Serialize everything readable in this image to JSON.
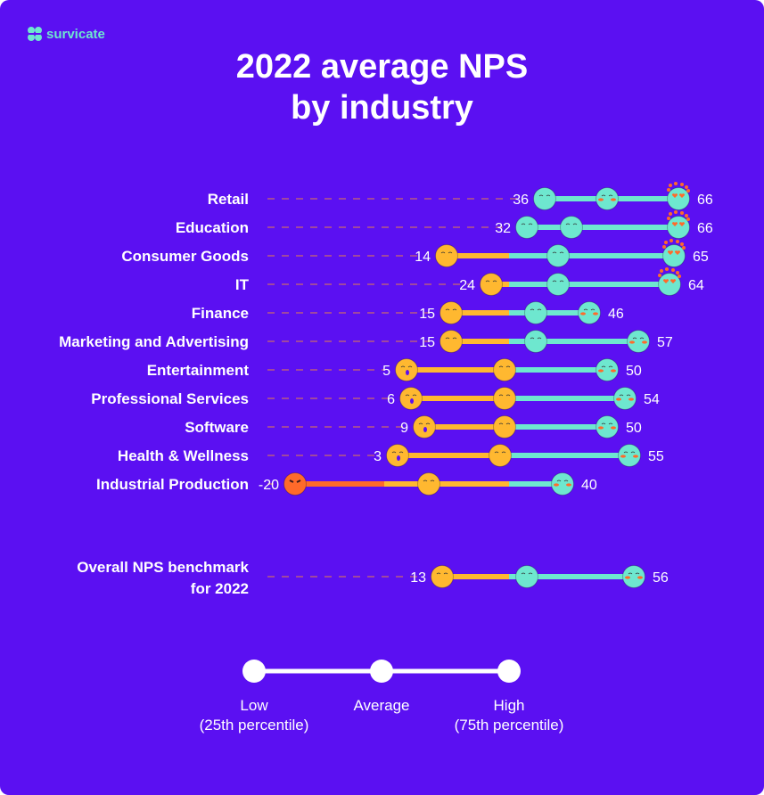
{
  "brand": {
    "logo_text": "survicate",
    "logo_color": "#6ee7cf"
  },
  "chart_data": {
    "type": "dumbbell",
    "title": "2022 average NPS by industry",
    "title_lines": [
      "2022 average NPS",
      "by industry"
    ],
    "colors": {
      "background": "#5b10f2",
      "negative": "#ff6a2a",
      "below_average": "#ffb830",
      "above_average": "#6ee7cf",
      "dash": "#a0489e"
    },
    "categories": [
      "Retail",
      "Education",
      "Consumer Goods",
      "IT",
      "Finance",
      "Marketing and Advertising",
      "Entertainment",
      "Professional Services",
      "Software",
      "Health & Wellness",
      "Industrial Production"
    ],
    "series": [
      {
        "name": "Low (25th percentile)",
        "values": [
          36,
          32,
          14,
          24,
          15,
          15,
          5,
          6,
          9,
          3,
          -20
        ]
      },
      {
        "name": "Average",
        "values": [
          50,
          42,
          39,
          39,
          34,
          34,
          27,
          27,
          27,
          26,
          10
        ]
      },
      {
        "name": "High (75th percentile)",
        "values": [
          66,
          66,
          65,
          64,
          46,
          57,
          50,
          54,
          50,
          55,
          40
        ]
      }
    ],
    "benchmark": {
      "label_lines": [
        "Overall NPS benchmark",
        "for 2022"
      ],
      "low": 13,
      "average": 32,
      "high": 56
    },
    "legend": {
      "items": [
        {
          "lines": [
            "Low",
            "(25th percentile)"
          ]
        },
        {
          "lines": [
            "Average"
          ]
        },
        {
          "lines": [
            "High",
            "(75th percentile)"
          ]
        }
      ],
      "placement": "bottom"
    }
  }
}
